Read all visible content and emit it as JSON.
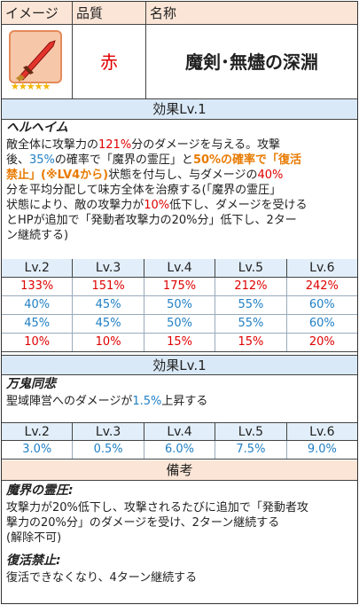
{
  "header": {
    "image_col": "イメージ",
    "quality_col": "品質",
    "name_col": "名称"
  },
  "item": {
    "quality": "赤",
    "name": "魔剣･無燼の深淵",
    "stars": "★★★★★"
  },
  "effect1": {
    "title": "効果Lv.1",
    "skill_name": "ヘルヘイム",
    "desc": [
      [
        {
          "t": "敵全体に攻撃力の"
        },
        {
          "t": "121%",
          "c": "red"
        },
        {
          "t": "分のダメージを与える。攻撃"
        }
      ],
      [
        {
          "t": "後、"
        },
        {
          "t": "35%",
          "c": "blu"
        },
        {
          "t": "の確率で「魔界の霊圧」と"
        },
        {
          "t": "50%の確率で「復活",
          "c": "org"
        }
      ],
      [
        {
          "t": "禁止」(※LV4から)",
          "c": "org"
        },
        {
          "t": "状態を付与し、与ダメージの"
        },
        {
          "t": "40%",
          "c": "red"
        }
      ],
      [
        {
          "t": "分を平均分配して味方全体を治療する(「魔界の霊圧」"
        }
      ],
      [
        {
          "t": "状態により、敵の攻撃力が"
        },
        {
          "t": "10%",
          "c": "red"
        },
        {
          "t": "低下し、ダメージを受ける"
        }
      ],
      [
        {
          "t": "とHPが追加で「発動者攻撃力の20%分」低下し、2ター"
        }
      ],
      [
        {
          "t": "ン継続する)"
        }
      ]
    ],
    "levels": [
      "Lv.2",
      "Lv.3",
      "Lv.4",
      "Lv.5",
      "Lv.6"
    ],
    "rows": [
      {
        "values": [
          "133%",
          "151%",
          "175%",
          "212%",
          "242%"
        ],
        "color": "red"
      },
      {
        "values": [
          "40%",
          "45%",
          "50%",
          "55%",
          "60%"
        ],
        "color": "blu"
      },
      {
        "values": [
          "45%",
          "45%",
          "50%",
          "55%",
          "60%"
        ],
        "color": "blu"
      },
      {
        "values": [
          "10%",
          "10%",
          "15%",
          "15%",
          "20%"
        ],
        "color": "red"
      }
    ]
  },
  "effect2": {
    "title": "効果Lv.1",
    "skill_name": "万鬼同悲",
    "desc_pre": "聖域陣営へのダメージが",
    "desc_val": "1.5%",
    "desc_post": "上昇する",
    "levels": [
      "Lv.2",
      "Lv.3",
      "Lv.4",
      "Lv.5",
      "Lv.6"
    ],
    "values": [
      "3.0%",
      "0.5%",
      "6.0%",
      "7.5%",
      "9.0%"
    ]
  },
  "notes": {
    "title": "備考",
    "term1": "魔界の霊圧:",
    "term1_desc": [
      "攻撃力が20%低下し、攻撃されるたびに追加で「発動者攻",
      "撃力の20%分」のダメージを受け、2ターン継続する",
      "(解除不可)"
    ],
    "term2": "復活禁止:",
    "term2_desc": "復活できなくなり、4ターン継続する"
  },
  "colors": {
    "red": "#e00000",
    "blue": "#1f7fc4",
    "orange": "#e87a00",
    "header_bg": "#fbe5d6",
    "section_bg": "#dae9f7"
  }
}
